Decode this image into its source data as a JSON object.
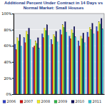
{
  "chart_data": {
    "type": "bar",
    "title": "Additional Percent Under Contract in 14 Days vs Normal Market: Small Houses",
    "categories": [
      null,
      null,
      null,
      null,
      null,
      null,
      null,
      null,
      null,
      null
    ],
    "series": [
      {
        "name": "2006",
        "color": "#2f3fc8",
        "values": [
          62,
          70,
          58,
          75,
          68,
          80,
          72,
          66,
          77,
          84
        ]
      },
      {
        "name": "2007",
        "color": "#d01010",
        "values": [
          55,
          64,
          60,
          70,
          62,
          74,
          69,
          60,
          71,
          78
        ]
      },
      {
        "name": "2008",
        "color": "#f2ee1a",
        "values": [
          70,
          78,
          66,
          82,
          74,
          86,
          80,
          72,
          83,
          90
        ]
      },
      {
        "name": "2009",
        "color": "#2fb84a",
        "values": [
          66,
          74,
          63,
          79,
          71,
          83,
          76,
          69,
          80,
          87
        ]
      },
      {
        "name": "2010",
        "color": "#0a0a5a",
        "values": [
          74,
          82,
          70,
          86,
          78,
          90,
          84,
          76,
          88,
          94
        ]
      },
      {
        "name": "2011",
        "color": "#22c6d8",
        "values": [
          60,
          68,
          57,
          73,
          65,
          77,
          71,
          64,
          75,
          81
        ]
      }
    ],
    "ylim": [
      0,
      100
    ],
    "yticks": [
      {
        "value": 0,
        "label": "0%"
      },
      {
        "value": 20,
        "label": "20%"
      },
      {
        "value": 40,
        "label": "40%"
      },
      {
        "value": 60,
        "label": "60%"
      },
      {
        "value": 80,
        "label": "80%"
      },
      {
        "value": 100,
        "label": "100%"
      }
    ],
    "grid": true,
    "legend": "bottom",
    "tick_labels": "y"
  }
}
